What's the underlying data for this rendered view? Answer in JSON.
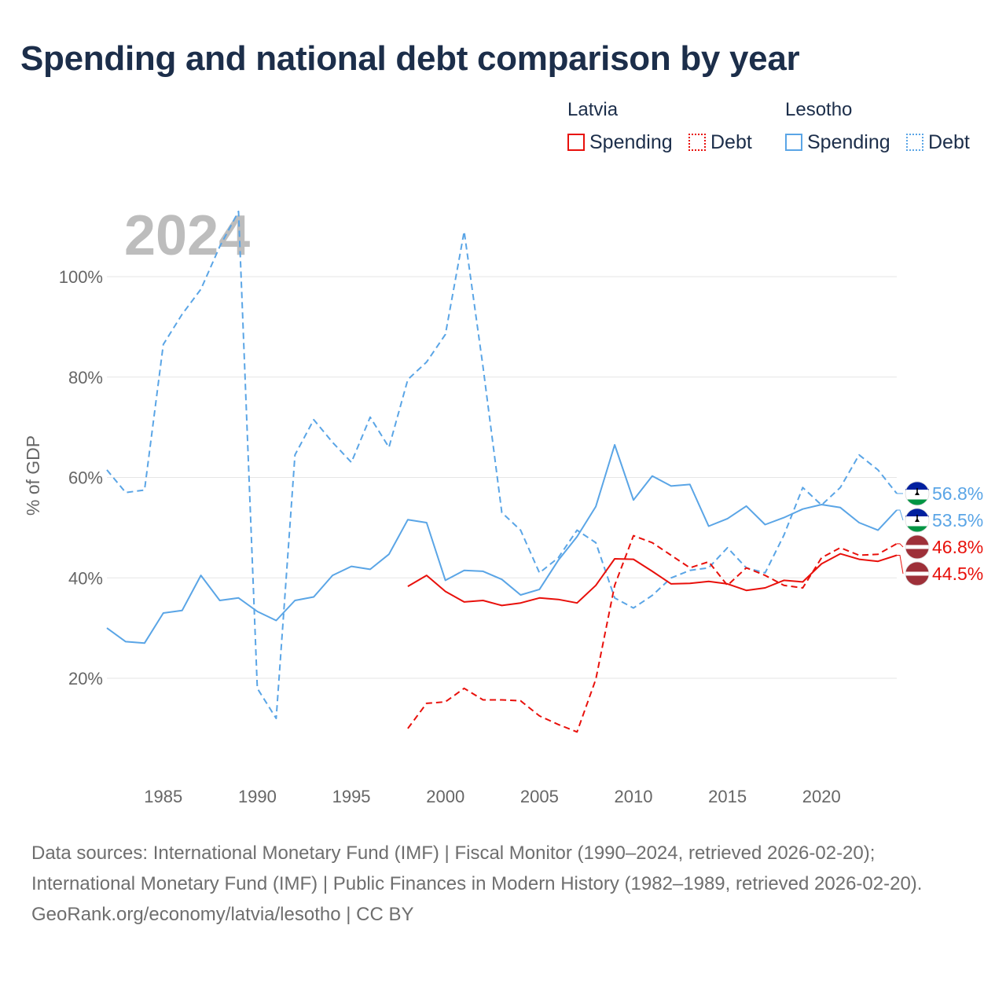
{
  "title": "Spending and national debt comparison by year",
  "legend": {
    "groups": [
      {
        "name": "Latvia",
        "items": [
          {
            "label": "Spending"
          },
          {
            "label": "Debt"
          }
        ]
      },
      {
        "name": "Lesotho",
        "items": [
          {
            "label": "Spending"
          },
          {
            "label": "Debt"
          }
        ]
      }
    ]
  },
  "colors": {
    "latvia": "#e8100b",
    "lesotho": "#5aa5e6",
    "grid": "#e6e6e6",
    "axis_text": "#666666",
    "year_watermark": "#bdbdbd"
  },
  "footer": {
    "sources": "Data sources: International Monetary Fund (IMF) | Fiscal Monitor (1990–2024, retrieved 2026-02-20); International Monetary Fund (IMF) | Public Finances in Modern History (1982–1989, retrieved 2026-02-20).",
    "credit": "GeoRank.org/economy/latvia/lesotho | CC BY"
  },
  "chart_data": {
    "type": "line",
    "year_label": "2024",
    "ylabel": "% of GDP",
    "xlabel": "",
    "xlim": [
      1982,
      2024
    ],
    "ylim": [
      0,
      115
    ],
    "x_ticks": [
      1985,
      1990,
      1995,
      2000,
      2005,
      2010,
      2015,
      2020
    ],
    "y_ticks": [
      20,
      40,
      60,
      80,
      100
    ],
    "y_tick_labels": [
      "20%",
      "40%",
      "60%",
      "80%",
      "100%"
    ],
    "series": [
      {
        "name": "Lesotho Debt",
        "country": "Lesotho",
        "measure": "Debt",
        "color": "#5aa5e6",
        "dashed": true,
        "end_label": "56.8%",
        "points": [
          [
            1982,
            61.5
          ],
          [
            1983,
            57
          ],
          [
            1984,
            57.5
          ],
          [
            1985,
            86.5
          ],
          [
            1986,
            92.5
          ],
          [
            1987,
            97.5
          ],
          [
            1988,
            106
          ],
          [
            1989,
            113
          ],
          [
            1990,
            18
          ],
          [
            1991,
            12
          ],
          [
            1992,
            64.5
          ],
          [
            1993,
            71.5
          ],
          [
            1994,
            67
          ],
          [
            1995,
            63
          ],
          [
            1996,
            72
          ],
          [
            1997,
            66
          ],
          [
            1998,
            79.5
          ],
          [
            1999,
            83
          ],
          [
            2000,
            88.5
          ],
          [
            2001,
            109
          ],
          [
            2002,
            82
          ],
          [
            2003,
            53
          ],
          [
            2004,
            49.5
          ],
          [
            2005,
            41
          ],
          [
            2006,
            44
          ],
          [
            2007,
            49.5
          ],
          [
            2008,
            47
          ],
          [
            2009,
            36
          ],
          [
            2010,
            34
          ],
          [
            2011,
            36.5
          ],
          [
            2012,
            40
          ],
          [
            2013,
            41.5
          ],
          [
            2014,
            42
          ],
          [
            2015,
            46
          ],
          [
            2016,
            42
          ],
          [
            2017,
            41
          ],
          [
            2018,
            48.5
          ],
          [
            2019,
            58
          ],
          [
            2020,
            54.5
          ],
          [
            2021,
            58
          ],
          [
            2022,
            64.5
          ],
          [
            2023,
            61.5
          ],
          [
            2024,
            56.8
          ]
        ]
      },
      {
        "name": "Lesotho Spending",
        "country": "Lesotho",
        "measure": "Spending",
        "color": "#5aa5e6",
        "dashed": false,
        "end_label": "53.5%",
        "points": [
          [
            1982,
            30
          ],
          [
            1983,
            27.3
          ],
          [
            1984,
            27
          ],
          [
            1985,
            33
          ],
          [
            1986,
            33.5
          ],
          [
            1987,
            40.5
          ],
          [
            1988,
            35.5
          ],
          [
            1989,
            36
          ],
          [
            1990,
            33.3
          ],
          [
            1991,
            31.5
          ],
          [
            1992,
            35.5
          ],
          [
            1993,
            36.2
          ],
          [
            1994,
            40.5
          ],
          [
            1995,
            42.3
          ],
          [
            1996,
            41.7
          ],
          [
            1997,
            44.7
          ],
          [
            1998,
            51.6
          ],
          [
            1999,
            51
          ],
          [
            2000,
            39.5
          ],
          [
            2001,
            41.5
          ],
          [
            2002,
            41.3
          ],
          [
            2003,
            39.7
          ],
          [
            2004,
            36.6
          ],
          [
            2005,
            37.7
          ],
          [
            2006,
            43.5
          ],
          [
            2007,
            48.2
          ],
          [
            2008,
            54.2
          ],
          [
            2009,
            66.5
          ],
          [
            2010,
            55.5
          ],
          [
            2011,
            60.3
          ],
          [
            2012,
            58.3
          ],
          [
            2013,
            58.6
          ],
          [
            2014,
            50.3
          ],
          [
            2015,
            51.8
          ],
          [
            2016,
            54.3
          ],
          [
            2017,
            50.6
          ],
          [
            2018,
            52
          ],
          [
            2019,
            53.7
          ],
          [
            2020,
            54.6
          ],
          [
            2021,
            54
          ],
          [
            2022,
            51
          ],
          [
            2023,
            49.5
          ],
          [
            2024,
            53.5
          ]
        ]
      },
      {
        "name": "Latvia Debt",
        "country": "Latvia",
        "measure": "Debt",
        "color": "#e8100b",
        "dashed": true,
        "end_label": "46.8%",
        "points": [
          [
            1998,
            10
          ],
          [
            1999,
            15
          ],
          [
            2000,
            15.3
          ],
          [
            2001,
            18
          ],
          [
            2002,
            15.7
          ],
          [
            2003,
            15.7
          ],
          [
            2004,
            15.5
          ],
          [
            2005,
            12.5
          ],
          [
            2006,
            10.8
          ],
          [
            2007,
            9.3
          ],
          [
            2008,
            19.8
          ],
          [
            2009,
            38.5
          ],
          [
            2010,
            48.4
          ],
          [
            2011,
            47
          ],
          [
            2012,
            44.5
          ],
          [
            2013,
            42
          ],
          [
            2014,
            43.2
          ],
          [
            2015,
            38.5
          ],
          [
            2016,
            42
          ],
          [
            2017,
            40.5
          ],
          [
            2018,
            38.5
          ],
          [
            2019,
            38
          ],
          [
            2020,
            44
          ],
          [
            2021,
            46
          ],
          [
            2022,
            44.5
          ],
          [
            2023,
            44.7
          ],
          [
            2024,
            46.8
          ]
        ]
      },
      {
        "name": "Latvia Spending",
        "country": "Latvia",
        "measure": "Spending",
        "color": "#e8100b",
        "dashed": false,
        "end_label": "44.5%",
        "points": [
          [
            1998,
            38.3
          ],
          [
            1999,
            40.5
          ],
          [
            2000,
            37.3
          ],
          [
            2001,
            35.2
          ],
          [
            2002,
            35.5
          ],
          [
            2003,
            34.5
          ],
          [
            2004,
            35
          ],
          [
            2005,
            36
          ],
          [
            2006,
            35.7
          ],
          [
            2007,
            35
          ],
          [
            2008,
            38.5
          ],
          [
            2009,
            43.8
          ],
          [
            2010,
            43.7
          ],
          [
            2011,
            41.3
          ],
          [
            2012,
            38.8
          ],
          [
            2013,
            38.9
          ],
          [
            2014,
            39.3
          ],
          [
            2015,
            38.8
          ],
          [
            2016,
            37.5
          ],
          [
            2017,
            38
          ],
          [
            2018,
            39.5
          ],
          [
            2019,
            39.2
          ],
          [
            2020,
            42.8
          ],
          [
            2021,
            44.8
          ],
          [
            2022,
            43.7
          ],
          [
            2023,
            43.3
          ],
          [
            2024,
            44.5
          ]
        ]
      }
    ]
  }
}
